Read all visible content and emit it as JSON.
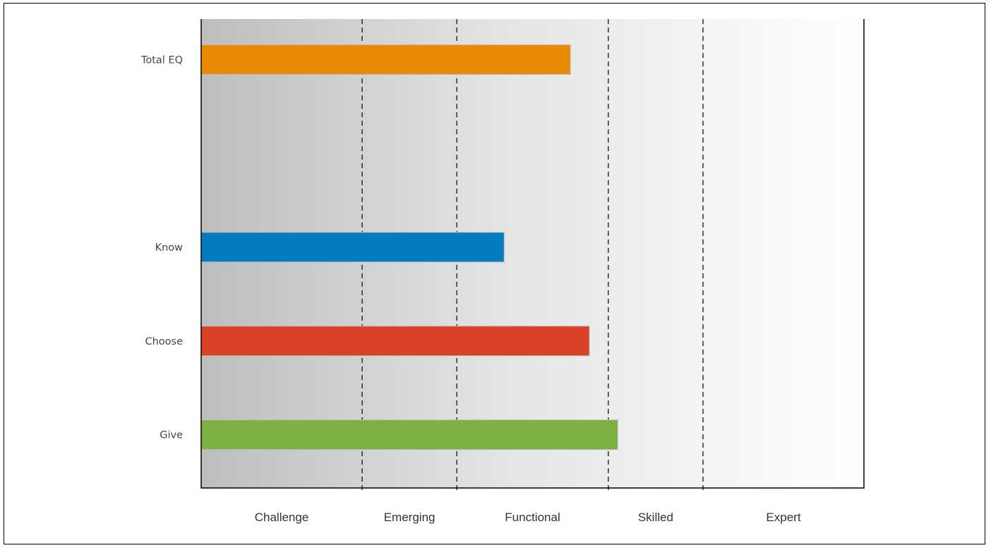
{
  "chart_data": {
    "type": "bar",
    "orientation": "horizontal",
    "categories": [
      "Total EQ",
      "",
      "Know",
      "Choose",
      "Give"
    ],
    "values": [
      104,
      null,
      97,
      106,
      109
    ],
    "bar_colors": [
      "#e88b00",
      null,
      "#037bc1",
      "#d84126",
      "#7db242"
    ],
    "xlim": [
      65,
      135
    ],
    "zones": [
      {
        "label": "Challenge",
        "from": 65,
        "to": 82
      },
      {
        "label": "Emerging",
        "from": 82,
        "to": 92
      },
      {
        "label": "Functional",
        "from": 92,
        "to": 108
      },
      {
        "label": "Skilled",
        "from": 108,
        "to": 118
      },
      {
        "label": "Expert",
        "from": 118,
        "to": 135
      }
    ],
    "zone_colors": [
      "#c2c2c2",
      "#d2d2d2",
      "#e2e2e2",
      "#f0f0f0",
      "#fcfcfc"
    ],
    "grid": false,
    "legend": "none"
  }
}
